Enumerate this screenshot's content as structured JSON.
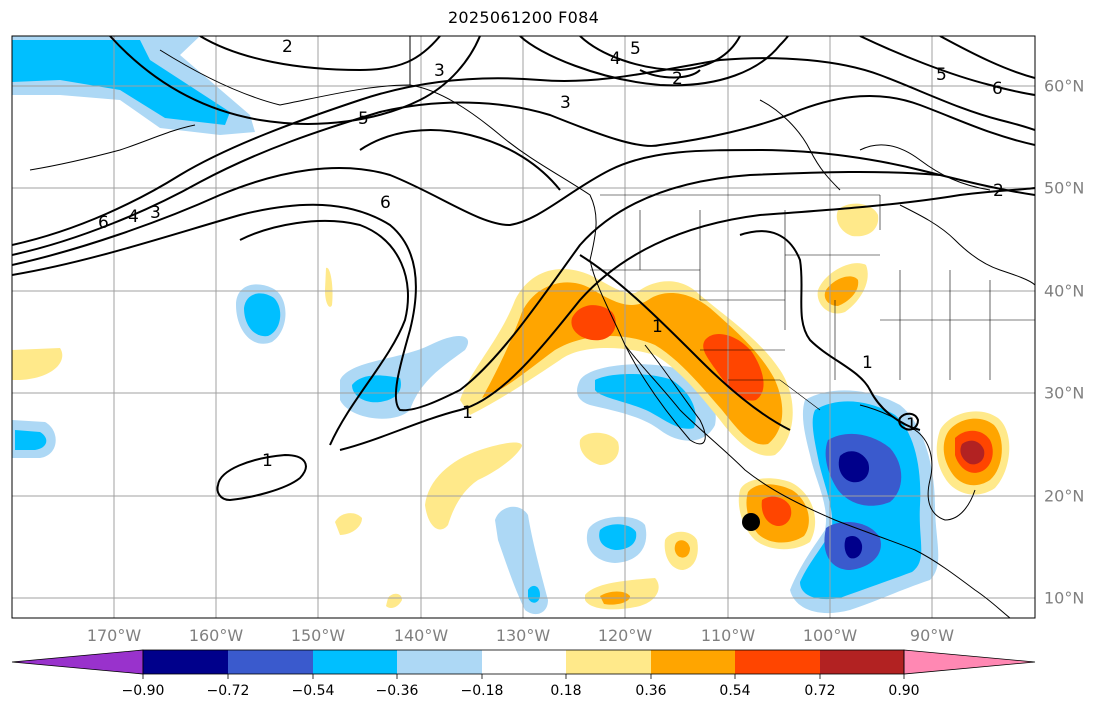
{
  "title": "2025061200 F084",
  "map": {
    "lon_labels": [
      "170°W",
      "160°W",
      "150°W",
      "140°W",
      "130°W",
      "120°W",
      "110°W",
      "100°W",
      "90°W"
    ],
    "lat_labels": [
      "60°N",
      "50°N",
      "40°N",
      "30°N",
      "20°N",
      "10°N"
    ],
    "contour_labels": [
      "2",
      "3",
      "4",
      "5",
      "2",
      "3",
      "5",
      "6",
      "2",
      "6",
      "4",
      "3",
      "5",
      "6",
      "1",
      "1",
      "1",
      "1",
      "1"
    ],
    "marker": "black-dot",
    "label_color": "#808080",
    "grid_color": "#a0a0a0"
  },
  "colorbar": {
    "ticks": [
      "−0.90",
      "−0.72",
      "−0.54",
      "−0.36",
      "−0.18",
      "0.18",
      "0.36",
      "0.54",
      "0.72",
      "0.90"
    ],
    "colors": [
      "#9932cc",
      "#00008b",
      "#3a5acd",
      "#00bfff",
      "#add8f5",
      "#ffffff",
      "#ffe98a",
      "#ffa500",
      "#ff4500",
      "#b22222",
      "#ff88b3"
    ]
  }
}
